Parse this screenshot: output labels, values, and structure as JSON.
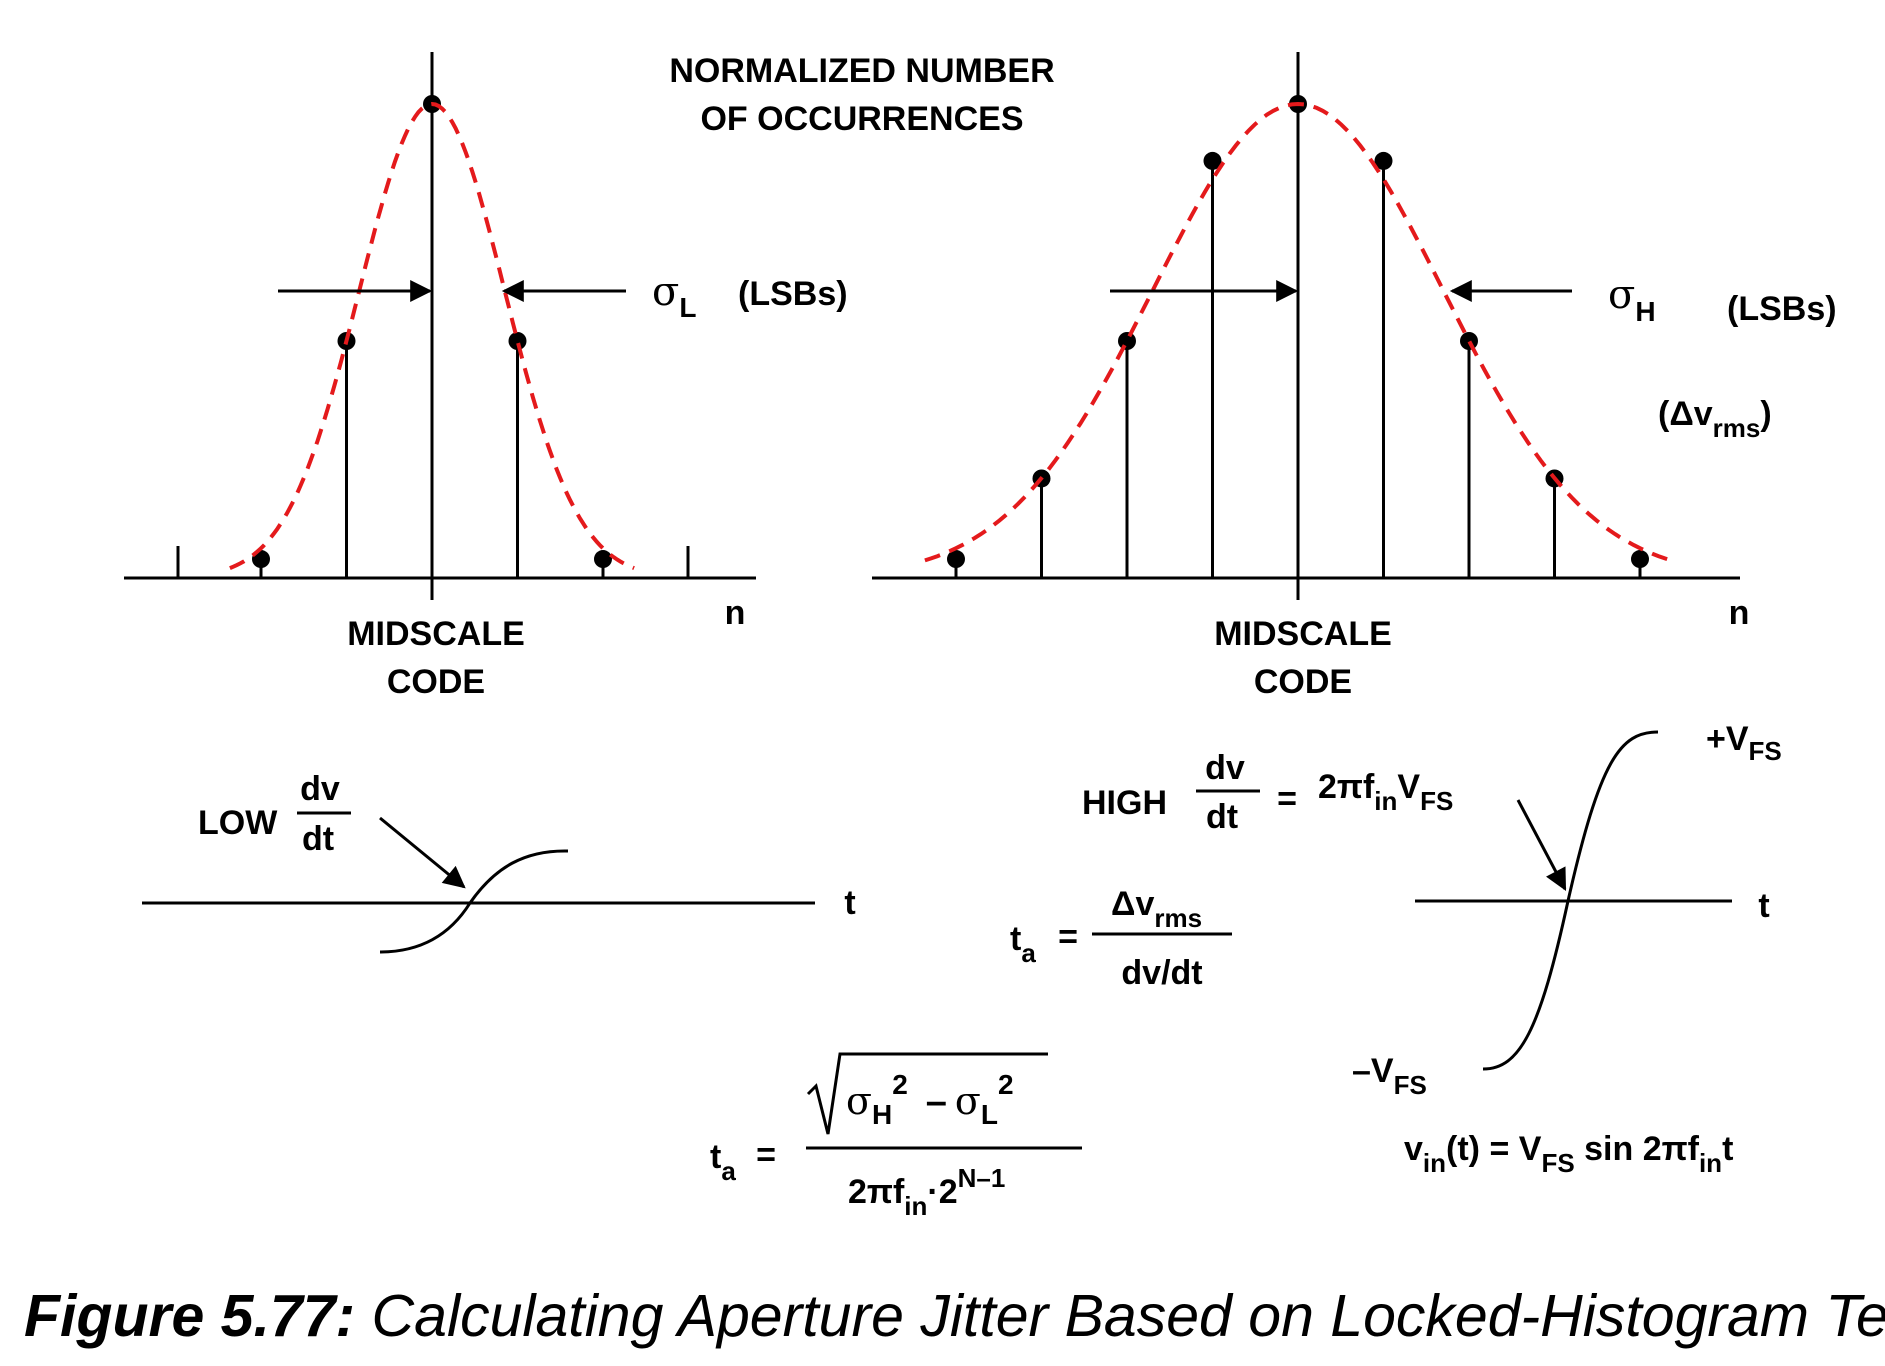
{
  "header": {
    "line1": "NORMALIZED NUMBER",
    "line2": "OF OCCURRENCES"
  },
  "left_histogram": {
    "values": [
      0.04,
      0.5,
      1.0,
      0.5,
      0.04
    ],
    "midscale_line1": "MIDSCALE",
    "midscale_line2": "CODE",
    "axis_label": "n",
    "sigma_symbol": "σ",
    "sigma_sub": "L",
    "sigma_units": "(LSBs)"
  },
  "right_histogram": {
    "values": [
      0.04,
      0.21,
      0.5,
      0.88,
      1.0,
      0.88,
      0.5,
      0.21,
      0.04
    ],
    "midscale_line1": "MIDSCALE",
    "midscale_line2": "CODE",
    "axis_label": "n",
    "sigma_symbol": "σ",
    "sigma_sub": "H",
    "sigma_units": "(LSBs)",
    "delta_v": "(Δv",
    "delta_v_sub": "rms",
    "delta_v_close": ")"
  },
  "low_slope": {
    "prefix": "LOW",
    "num": "dv",
    "den": "dt",
    "axis_label": "t"
  },
  "high_slope": {
    "prefix": "HIGH",
    "num": "dv",
    "den": "dt",
    "equals": "=",
    "rhs_main": "2πf",
    "rhs_sub1": "in",
    "rhs_v": "V",
    "rhs_sub2": "FS",
    "axis_label": "t",
    "plus_vfs": "+V",
    "plus_vfs_sub": "FS",
    "minus_vfs": "–V",
    "minus_vfs_sub": "FS",
    "vin_v": "v",
    "vin_sub": "in",
    "vin_mid": "(t) = V",
    "vin_sub2": "FS",
    "vin_sin": " sin 2πf",
    "vin_sub3": "in",
    "vin_end": "t"
  },
  "ta_dvdt": {
    "lhs": "t",
    "lhs_sub": "a",
    "equals": "=",
    "num": "Δv",
    "num_sub": "rms",
    "den": "dv/dt"
  },
  "ta_sigma": {
    "lhs": "t",
    "lhs_sub": "a",
    "equals": "=",
    "sigma": "σ",
    "h_sub": "H",
    "sq1": "2",
    "minus": "–",
    "l_sub": "L",
    "sq2": "2",
    "den_main": "2πf",
    "den_sub": "in",
    "den_dot": "·2",
    "den_exp": "N–1"
  },
  "caption": {
    "label": "Figure 5.77:",
    "text": " Calculating Aperture Jitter Based on Locked-Histogram Test"
  },
  "colors": {
    "ink": "#000000",
    "fit_curve": "#e41a1c"
  }
}
